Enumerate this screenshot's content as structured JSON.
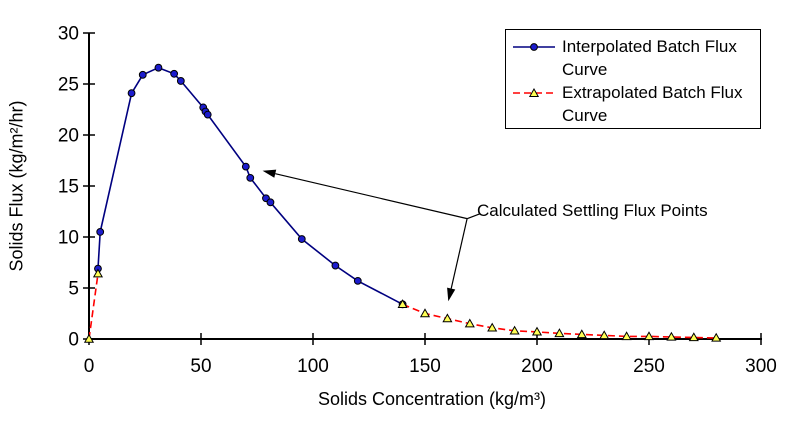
{
  "chart_data": {
    "type": "line",
    "title": "",
    "xlabel": "Solids Concentration  (kg/m³)",
    "ylabel": "Solids Flux (kg/m²/hr)",
    "xlim": [
      0,
      300
    ],
    "ylim": [
      0,
      30
    ],
    "x_ticks": [
      0,
      50,
      100,
      150,
      200,
      250,
      300
    ],
    "y_ticks": [
      0,
      5,
      10,
      15,
      20,
      25,
      30
    ],
    "grid": false,
    "legend_position": "top-right",
    "axis_color": "#000000",
    "series": [
      {
        "name": "Interpolated Batch Flux Curve",
        "line_style": "solid",
        "line_color": "#000080",
        "marker": "circle",
        "marker_fill": "#1c1ccd",
        "marker_edge": "#000000",
        "segments": [
          [
            [
              4,
              6.9
            ],
            [
              5,
              10.5
            ],
            [
              19,
              24.1
            ],
            [
              24,
              25.9
            ],
            [
              31,
              26.6
            ],
            [
              38,
              26.0
            ],
            [
              41,
              25.3
            ],
            [
              51,
              22.7
            ],
            [
              52,
              22.3
            ],
            [
              53,
              22.0
            ],
            [
              70,
              16.9
            ],
            [
              72,
              15.8
            ],
            [
              79,
              13.8
            ],
            [
              81,
              13.4
            ],
            [
              95,
              9.8
            ],
            [
              110,
              7.2
            ],
            [
              120,
              5.7
            ],
            [
              140,
              3.4
            ]
          ]
        ]
      },
      {
        "name": "Extrapolated Batch Flux Curve",
        "line_style": "dashed",
        "line_color": "#ff0000",
        "marker": "triangle",
        "marker_fill": "#ffff55",
        "marker_edge": "#000000",
        "segments": [
          [
            [
              0,
              0
            ],
            [
              4,
              6.4
            ]
          ],
          [
            [
              140,
              3.4
            ],
            [
              150,
              2.5
            ],
            [
              160,
              2.0
            ],
            [
              170,
              1.5
            ],
            [
              180,
              1.1
            ],
            [
              190,
              0.8
            ],
            [
              200,
              0.7
            ],
            [
              210,
              0.55
            ],
            [
              220,
              0.45
            ],
            [
              230,
              0.35
            ],
            [
              240,
              0.25
            ],
            [
              250,
              0.25
            ],
            [
              260,
              0.2
            ],
            [
              270,
              0.15
            ],
            [
              280,
              0.1
            ]
          ]
        ]
      }
    ],
    "annotation": {
      "text": "Calculated Settling Flux Points",
      "arrows": [
        {
          "from": [
            174.8,
            12.3
          ],
          "to": [
            168.8,
            11.8
          ],
          "head": false
        },
        {
          "from": [
            168.8,
            11.8
          ],
          "to": [
            77.5,
            16.5
          ],
          "head": true
        },
        {
          "from": [
            168.8,
            11.8
          ],
          "to": [
            160.4,
            3.7
          ],
          "head": true
        }
      ]
    }
  }
}
